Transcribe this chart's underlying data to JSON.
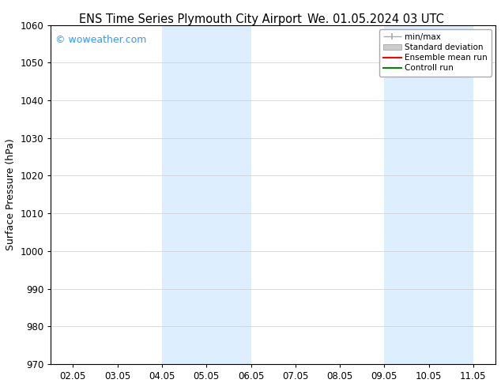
{
  "title_left": "ENS Time Series Plymouth City Airport",
  "title_right": "We. 01.05.2024 03 UTC",
  "ylabel": "Surface Pressure (hPa)",
  "ylim": [
    970,
    1060
  ],
  "yticks": [
    970,
    980,
    990,
    1000,
    1010,
    1020,
    1030,
    1040,
    1050,
    1060
  ],
  "xtick_labels": [
    "02.05",
    "03.05",
    "04.05",
    "05.05",
    "06.05",
    "07.05",
    "08.05",
    "09.05",
    "10.05",
    "11.05"
  ],
  "watermark": "© woweather.com",
  "watermark_color": "#3399ff",
  "background_color": "#ffffff",
  "plot_bg_color": "#ffffff",
  "shaded_regions": [
    {
      "xstart": 3.0,
      "xend": 4.0,
      "color": "#ddeeff"
    },
    {
      "xstart": 4.0,
      "xend": 5.0,
      "color": "#ddeeff"
    },
    {
      "xstart": 8.0,
      "xend": 9.0,
      "color": "#ddeeff"
    },
    {
      "xstart": 9.0,
      "xend": 10.0,
      "color": "#ddeeff"
    }
  ],
  "legend_entries": [
    {
      "label": "min/max",
      "color": "#aaaaaa",
      "lw": 1.2,
      "style": "minmax"
    },
    {
      "label": "Standard deviation",
      "color": "#cccccc",
      "lw": 6,
      "style": "band"
    },
    {
      "label": "Ensemble mean run",
      "color": "#ff0000",
      "lw": 1.5,
      "style": "line"
    },
    {
      "label": "Controll run",
      "color": "#008800",
      "lw": 1.5,
      "style": "line"
    }
  ],
  "title_fontsize": 10.5,
  "tick_fontsize": 8.5,
  "ylabel_fontsize": 9,
  "watermark_fontsize": 9,
  "grid_color": "#cccccc",
  "spine_color": "#000000",
  "legend_fontsize": 7.5,
  "xlim": [
    0.5,
    10.5
  ]
}
